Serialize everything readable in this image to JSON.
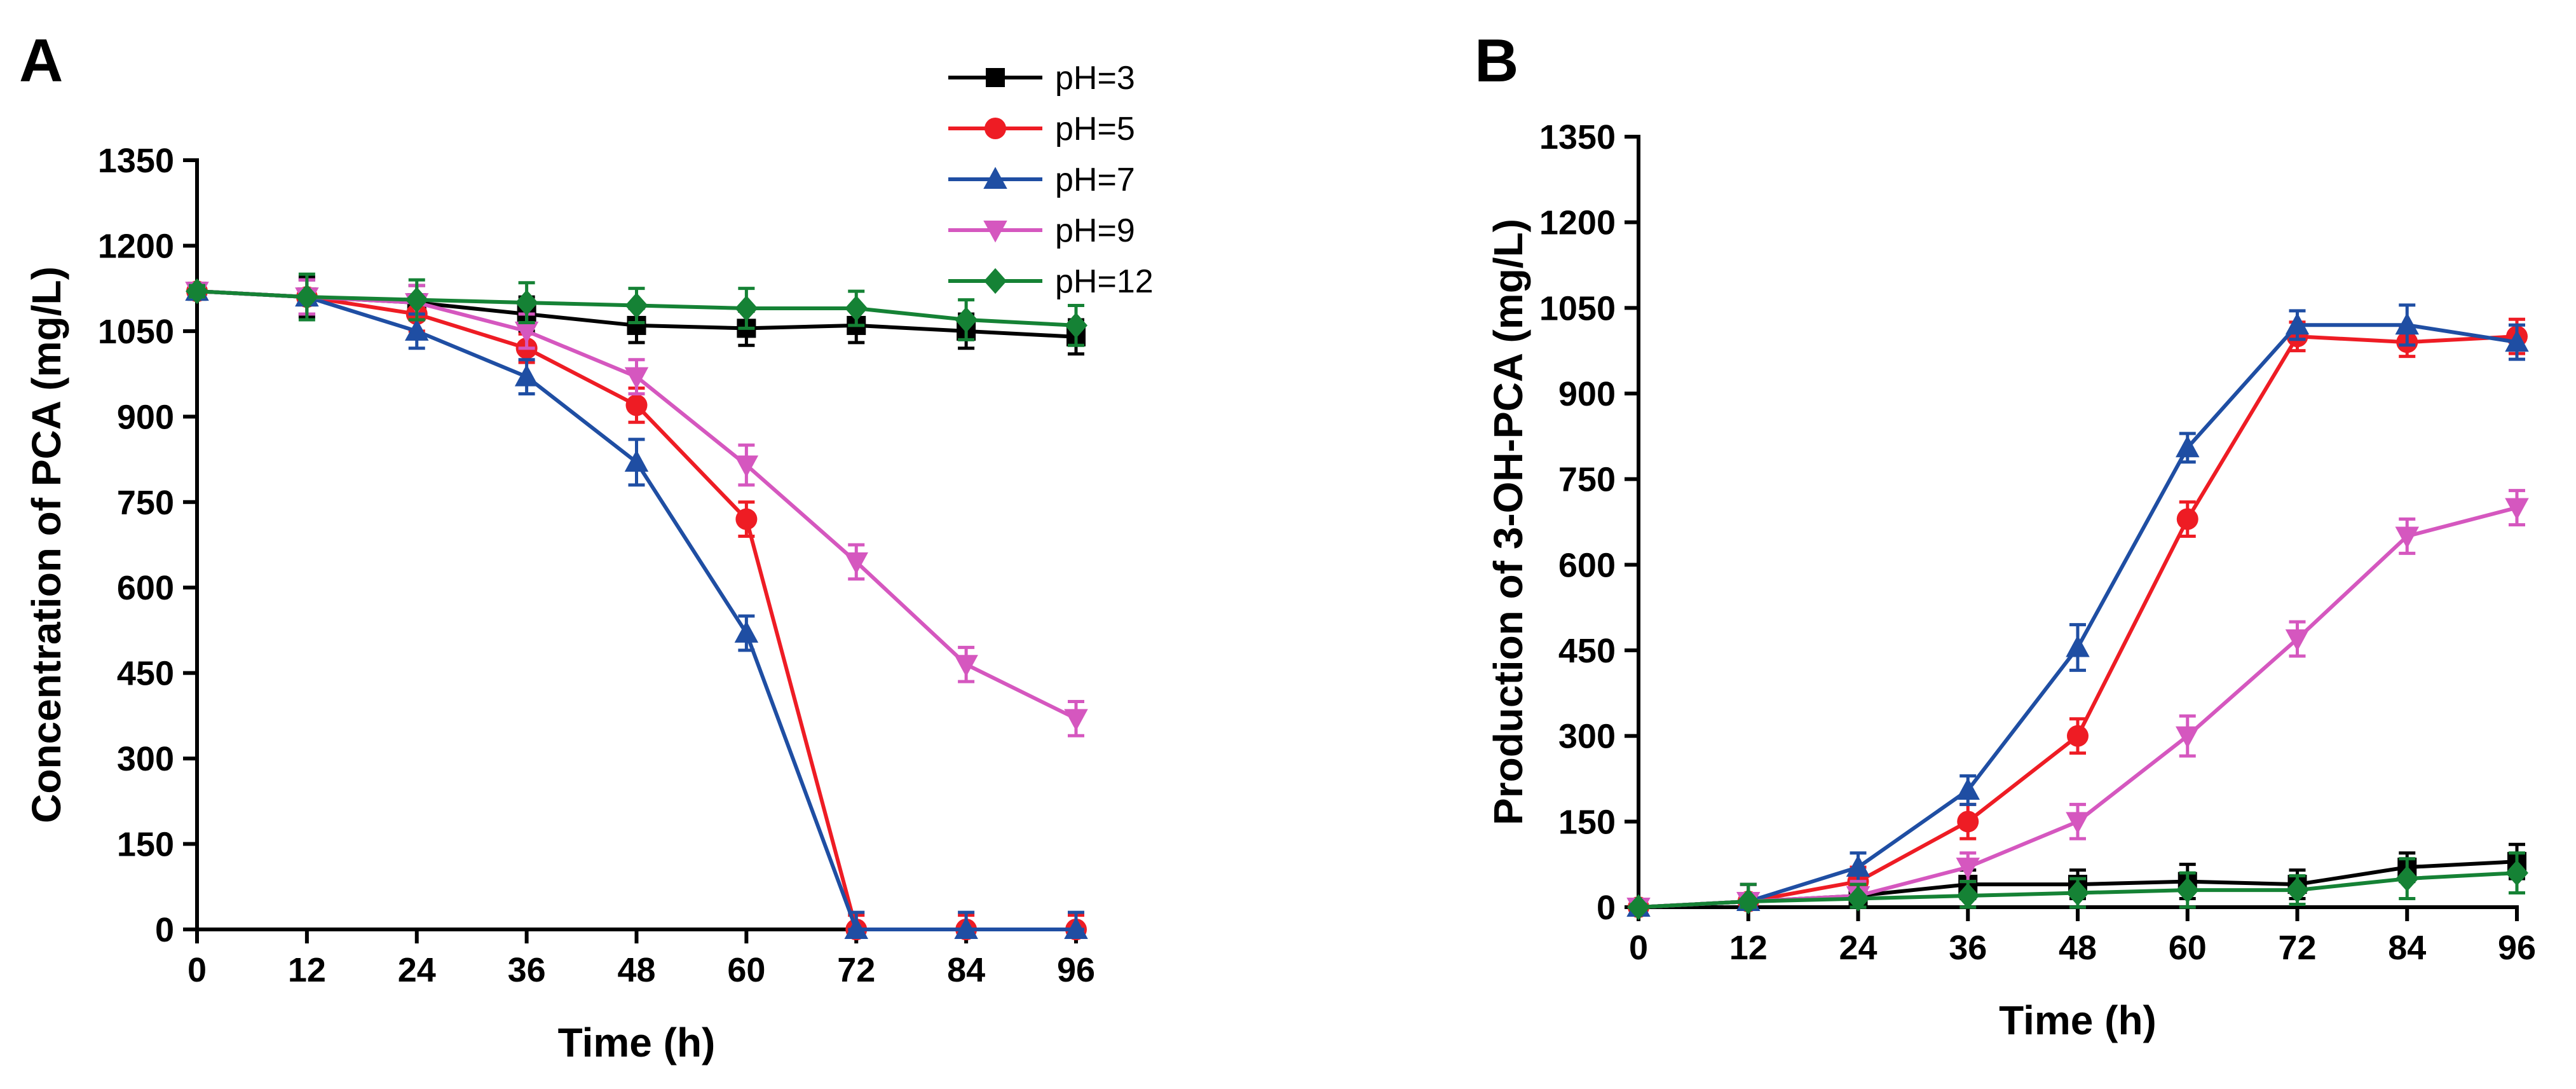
{
  "chart_data": [
    {
      "panel": "A",
      "type": "line",
      "title": "",
      "xlabel": "Time (h)",
      "ylabel": "Concentration of PCA (mg/L)",
      "xlim": [
        0,
        96
      ],
      "ylim": [
        0,
        1350
      ],
      "xticks": [
        0,
        12,
        24,
        36,
        48,
        60,
        72,
        84,
        96
      ],
      "yticks": [
        0,
        150,
        300,
        450,
        600,
        750,
        900,
        1050,
        1200,
        1350
      ],
      "legend": "top-right",
      "x": [
        0,
        12,
        24,
        36,
        48,
        60,
        72,
        84,
        96
      ],
      "series": [
        {
          "name": "pH=3",
          "color": "#000000",
          "marker": "square",
          "values": [
            1120,
            1110,
            1100,
            1080,
            1060,
            1055,
            1060,
            1050,
            1040
          ],
          "errors": [
            10,
            35,
            30,
            30,
            30,
            30,
            30,
            30,
            30
          ]
        },
        {
          "name": "pH=5",
          "color": "#ee1c24",
          "marker": "circle",
          "values": [
            1120,
            1110,
            1080,
            1020,
            920,
            720,
            0,
            0,
            0
          ],
          "errors": [
            10,
            30,
            30,
            25,
            30,
            30,
            25,
            25,
            25
          ]
        },
        {
          "name": "pH=7",
          "color": "#1f4ea3",
          "marker": "triangle-up",
          "values": [
            1120,
            1110,
            1050,
            970,
            820,
            520,
            0,
            0,
            0
          ],
          "errors": [
            10,
            30,
            30,
            30,
            40,
            30,
            30,
            30,
            30
          ]
        },
        {
          "name": "pH=9",
          "color": "#d557bf",
          "marker": "triangle-down",
          "values": [
            1120,
            1110,
            1100,
            1050,
            970,
            815,
            645,
            465,
            370
          ],
          "errors": [
            10,
            30,
            30,
            30,
            30,
            35,
            30,
            30,
            30
          ]
        },
        {
          "name": "pH=12",
          "color": "#158235",
          "marker": "diamond",
          "values": [
            1120,
            1110,
            1105,
            1100,
            1095,
            1090,
            1090,
            1070,
            1060
          ],
          "errors": [
            10,
            40,
            35,
            35,
            30,
            35,
            30,
            35,
            35
          ]
        }
      ]
    },
    {
      "panel": "B",
      "type": "line",
      "title": "",
      "xlabel": "Time (h)",
      "ylabel": "Production of 3-OH-PCA (mg/L)",
      "xlim": [
        0,
        96
      ],
      "ylim": [
        0,
        1350
      ],
      "xticks": [
        0,
        12,
        24,
        36,
        48,
        60,
        72,
        84,
        96
      ],
      "yticks": [
        0,
        150,
        300,
        450,
        600,
        750,
        900,
        1050,
        1200,
        1350
      ],
      "legend": "shared",
      "x": [
        0,
        12,
        24,
        36,
        48,
        60,
        72,
        84,
        96
      ],
      "series": [
        {
          "name": "pH=3",
          "color": "#000000",
          "marker": "square",
          "values": [
            0,
            10,
            20,
            40,
            40,
            45,
            40,
            70,
            80
          ],
          "errors": [
            5,
            30,
            25,
            25,
            25,
            30,
            25,
            25,
            30
          ]
        },
        {
          "name": "pH=5",
          "color": "#ee1c24",
          "marker": "circle",
          "values": [
            0,
            10,
            45,
            150,
            300,
            680,
            1000,
            990,
            1000
          ],
          "errors": [
            5,
            30,
            25,
            30,
            30,
            30,
            25,
            25,
            30
          ]
        },
        {
          "name": "pH=7",
          "color": "#1f4ea3",
          "marker": "triangle-up",
          "values": [
            0,
            10,
            70,
            205,
            455,
            805,
            1020,
            1020,
            990
          ],
          "errors": [
            5,
            30,
            25,
            25,
            40,
            25,
            25,
            35,
            30
          ]
        },
        {
          "name": "pH=9",
          "color": "#d557bf",
          "marker": "triangle-down",
          "values": [
            0,
            10,
            20,
            70,
            150,
            300,
            470,
            650,
            700
          ],
          "errors": [
            5,
            30,
            25,
            25,
            30,
            35,
            30,
            30,
            30
          ]
        },
        {
          "name": "pH=12",
          "color": "#158235",
          "marker": "diamond",
          "values": [
            0,
            10,
            15,
            20,
            25,
            30,
            30,
            50,
            60
          ],
          "errors": [
            5,
            30,
            25,
            25,
            25,
            30,
            25,
            35,
            35
          ]
        }
      ]
    }
  ],
  "panels": {
    "a_label": "A",
    "b_label": "B"
  },
  "legend": {
    "items": [
      "pH=3",
      "pH=5",
      "pH=7",
      "pH=9",
      "pH=12"
    ]
  }
}
